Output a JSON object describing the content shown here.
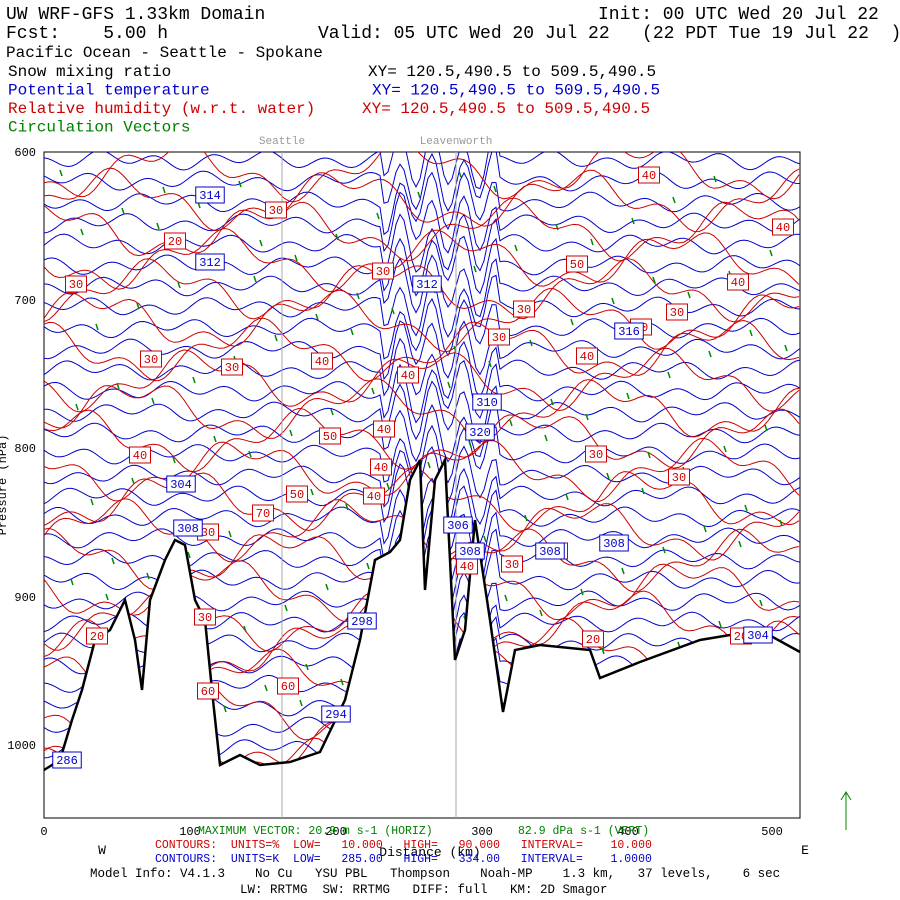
{
  "header": {
    "title": "UW WRF-GFS 1.33km Domain",
    "init": "Init: 00 UTC Wed 20 Jul 22",
    "fcst": "Fcst:    5.00 h",
    "valid": "Valid: 05 UTC Wed 20 Jul 22   (22 PDT Tue 19 Jul 22  )",
    "region": "Pacific Ocean - Seattle - Spokane"
  },
  "fields": [
    {
      "name": "Snow mixing ratio",
      "xy": "XY= 120.5,490.5 to 509.5,490.5"
    },
    {
      "name": "Potential temperature",
      "xy": "XY= 120.5,490.5 to 509.5,490.5"
    },
    {
      "name": "Relative humidity (w.r.t. water)",
      "xy": "XY= 120.5,490.5 to 509.5,490.5"
    },
    {
      "name": "Circulation Vectors"
    }
  ],
  "places": [
    "Seattle",
    "Leavenworth"
  ],
  "y_axis": {
    "label": "Pressure (hPa)",
    "ticks": [
      "600",
      "700",
      "800",
      "900",
      "1000"
    ]
  },
  "x_axis": {
    "label": "Distance (km)",
    "ticks": [
      "0",
      "100",
      "200",
      "300",
      "400",
      "500"
    ],
    "west": "W",
    "east": "E"
  },
  "contour_labels": {
    "red": [
      "40",
      "30",
      "20",
      "30",
      "50",
      "40",
      "30",
      "40",
      "30",
      "30",
      "30",
      "40",
      "30",
      "30",
      "40",
      "40",
      "40",
      "50",
      "40",
      "40",
      "40",
      "30",
      "30",
      "50",
      "40",
      "70",
      "30",
      "50",
      "30",
      "40",
      "30",
      "20",
      "20",
      "20",
      "60",
      "60"
    ],
    "blue": [
      "314",
      "312",
      "312",
      "316",
      "310",
      "320",
      "304",
      "308",
      "306",
      "308",
      "308",
      "308",
      "298",
      "294",
      "286",
      "304"
    ]
  },
  "footer": {
    "max_vector": "MAXIMUM VECTOR: 20.9 m s-1 (HORIZ)",
    "max_vert": "82.9 dPa s-1 (VERT)",
    "rh_contours": "CONTOURS:  UNITS=%  LOW=   10.000   HIGH=   90.000   INTERVAL=    10.000",
    "th_contours": "CONTOURS:  UNITS=K  LOW=   285.00   HIGH=   334.00   INTERVAL=    1.0000",
    "model": "Model Info: V4.1.3    No Cu   YSU PBL   Thompson    Noah-MP    1.3 km,   37 levels,    6 sec",
    "physics": "LW: RRTMG  SW: RRTMG   DIFF: full   KM: 2D Smagor"
  }
}
